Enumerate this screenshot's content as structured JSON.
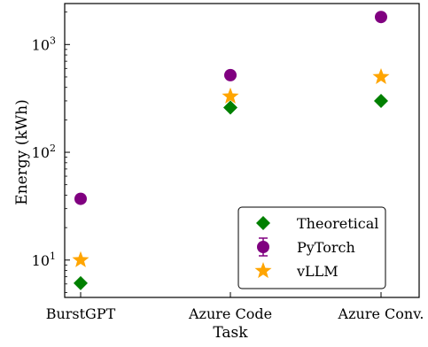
{
  "chart_data": {
    "type": "scatter",
    "xlabel": "Task",
    "ylabel": "Energy (kWh)",
    "yscale": "log",
    "ylim": [
      4.5,
      2400
    ],
    "categories": [
      "BurstGPT",
      "Azure Code",
      "Azure Conv."
    ],
    "y_ticks": [
      {
        "value": 10,
        "base": "10",
        "exp": "1"
      },
      {
        "value": 100,
        "base": "10",
        "exp": "2"
      },
      {
        "value": 1000,
        "base": "10",
        "exp": "3"
      }
    ],
    "grid": false,
    "legend_position": "lower-right",
    "series": [
      {
        "name": "Theoretical",
        "marker": "diamond",
        "color": "#008000",
        "values": [
          6.1,
          260,
          300
        ]
      },
      {
        "name": "PyTorch",
        "marker": "circle-errorbar",
        "color": "#800080",
        "values": [
          37,
          520,
          1800
        ]
      },
      {
        "name": "vLLM",
        "marker": "star",
        "color": "#FFA500",
        "values": [
          10,
          330,
          500
        ]
      }
    ]
  }
}
